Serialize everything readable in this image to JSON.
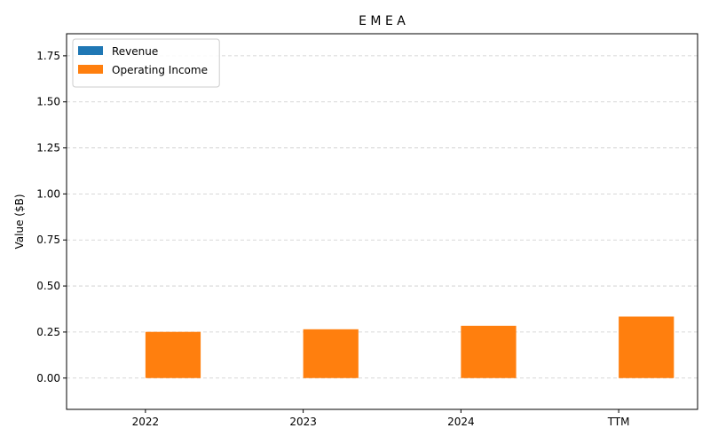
{
  "chart_data": {
    "type": "bar",
    "title": "E M E A",
    "xlabel": "",
    "ylabel": "Value ($B)",
    "categories": [
      "2022",
      "2023",
      "2024",
      "TTM"
    ],
    "series": [
      {
        "name": "Revenue",
        "color": "#1f77b4",
        "values": [
          0,
          0,
          0,
          0
        ]
      },
      {
        "name": "Operating Income",
        "color": "#ff7f0e",
        "values": [
          0.251,
          0.265,
          0.284,
          0.334
        ]
      }
    ],
    "ylim": [
      -0.17,
      1.87
    ],
    "yticks": [
      "0.00",
      "0.25",
      "0.50",
      "0.75",
      "1.00",
      "1.25",
      "1.50",
      "1.75"
    ],
    "grid": true,
    "grid_axis": "y",
    "legend_position": "top-left"
  }
}
